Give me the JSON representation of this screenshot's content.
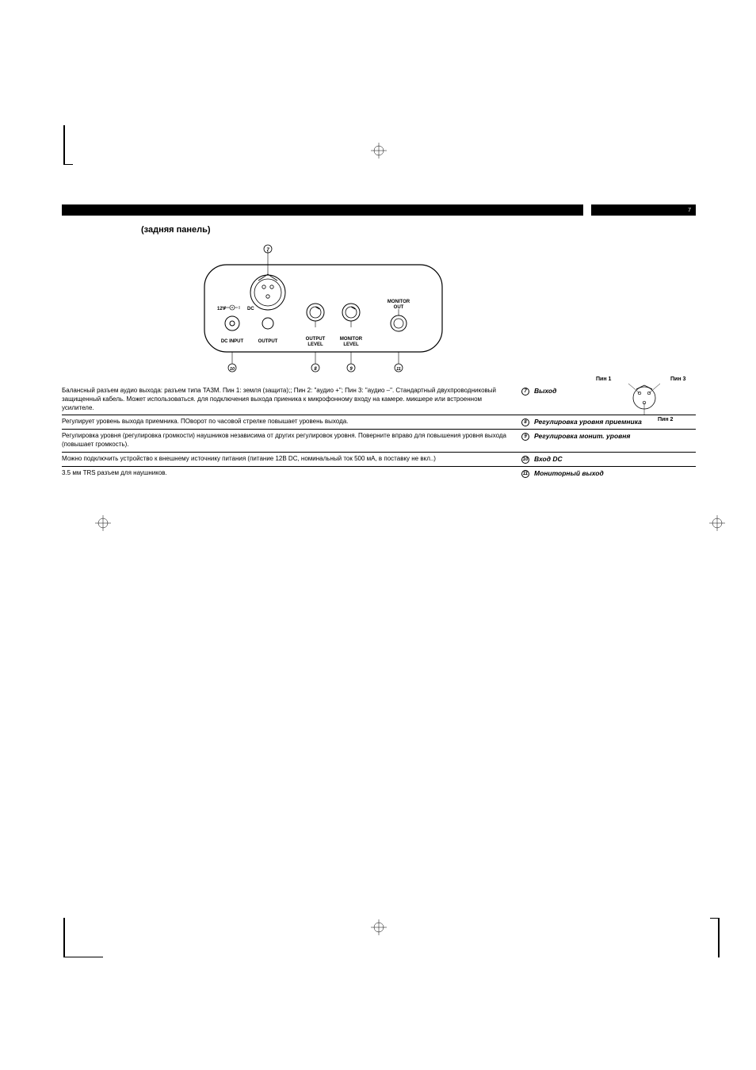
{
  "page_number": "7",
  "subtitle": "(задняя панель)",
  "panel": {
    "dc_top_label_left": "12V",
    "dc_top_label_right": "DC",
    "dc_input": "DC INPUT",
    "output": "OUTPUT",
    "output_level": "OUTPUT\nLEVEL",
    "monitor_level": "MONITOR\nLEVEL",
    "monitor_out": "MONITOR\nOUT",
    "callout_7": "7",
    "callout_8": "8",
    "callout_9": "9",
    "callout_10": "10",
    "callout_11": "11"
  },
  "pins": {
    "pin1": "Пин 1",
    "pin2": "Пин 2",
    "pin3": "Пин 3"
  },
  "rows": [
    {
      "desc": "Балансный разъем аудио выхода: разъем типа TA3M. Пин 1: земля (защита);; Пин 2: \"аудио +\"; Пин 3: \"аудио –\". Стандартный двухпроводниковый защищенный кабель. Может использоваться. для подключения выхода приеника к микрофонному входу на камере. микшере или встроенном усилителе.",
      "num": "7",
      "label": "Выход"
    },
    {
      "desc": "Регулирует уровень выхода приемника. ПОворот по часовой стрелке повышает уровень выхода.",
      "num": "8",
      "label": "Регулировка уровня приемника"
    },
    {
      "desc": "Регулировка уровня (регулировка громкости) наушников независима от других регулировок уровня. Поверните вправо для повышения уровня выхода (повышает громкость).",
      "num": "9",
      "label": "Регулировка монит. уровня"
    },
    {
      "desc": "Можно подключить устройство к внешнему источнику питания (питание 12В DC, номинальный ток 500 мА, в поставку не вкл..)",
      "num": "10",
      "label": "Вход DC"
    },
    {
      "desc": "3.5 мм TRS разъем для наушников.",
      "num": "11",
      "label": "Мониторный выход"
    }
  ]
}
